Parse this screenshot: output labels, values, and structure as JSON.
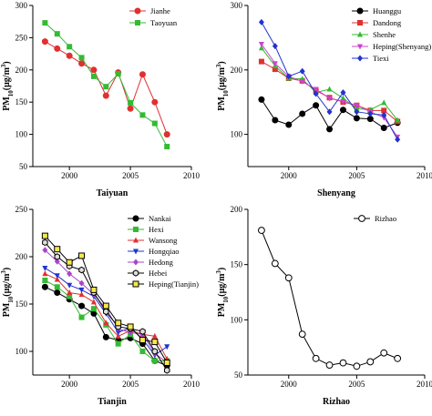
{
  "chart_data": [
    {
      "type": "line",
      "xlabel": "Taiyuan",
      "ylabel_main": "PM",
      "ylabel_sub": "10",
      "ylabel_unit": "(μg/m",
      "ylabel_sup": "3",
      "ylabel_close": ")",
      "xlim": [
        1997,
        2010
      ],
      "ylim": [
        50,
        300
      ],
      "xticks": [
        2000,
        2005,
        2010
      ],
      "yticks": [
        50,
        100,
        150,
        200,
        250,
        300
      ],
      "legend_position": "top-right",
      "series": [
        {
          "name": "Jianhe",
          "color": "#e03030",
          "marker": "circle",
          "x": [
            1998,
            1999,
            2000,
            2001,
            2002,
            2003,
            2004,
            2005,
            2006,
            2007,
            2008
          ],
          "y": [
            244,
            233,
            222,
            210,
            200,
            160,
            196,
            140,
            193,
            150,
            100
          ]
        },
        {
          "name": "Taoyuan",
          "color": "#33bb33",
          "marker": "square",
          "x": [
            1998,
            1999,
            2000,
            2001,
            2002,
            2003,
            2004,
            2005,
            2006,
            2007,
            2008
          ],
          "y": [
            273,
            256,
            236,
            219,
            190,
            174,
            194,
            149,
            130,
            117,
            81
          ]
        }
      ]
    },
    {
      "type": "line",
      "xlabel": "Shenyang",
      "ylabel_main": "PM",
      "ylabel_sub": "10",
      "ylabel_unit": "(μg/m",
      "ylabel_sup": "3",
      "ylabel_close": ")",
      "xlim": [
        1997,
        2010
      ],
      "ylim": [
        50,
        300
      ],
      "xticks": [
        2000,
        2005,
        2010
      ],
      "yticks": [
        100,
        200,
        300
      ],
      "legend_position": "top-right",
      "series": [
        {
          "name": "Huanggu",
          "color": "#000000",
          "marker": "circle",
          "x": [
            1998,
            1999,
            2000,
            2001,
            2002,
            2003,
            2004,
            2005,
            2006,
            2007,
            2008
          ],
          "y": [
            154,
            122,
            115,
            132,
            145,
            108,
            138,
            125,
            124,
            110,
            118
          ]
        },
        {
          "name": "Dandong",
          "color": "#e03030",
          "marker": "square",
          "x": [
            1998,
            1999,
            2000,
            2001,
            2002,
            2003,
            2004,
            2005,
            2006,
            2007,
            2008
          ],
          "y": [
            213,
            201,
            187,
            183,
            168,
            157,
            150,
            145,
            137,
            137,
            120
          ]
        },
        {
          "name": "Shenhe",
          "color": "#33bb33",
          "marker": "triangle",
          "x": [
            1998,
            1999,
            2000,
            2001,
            2002,
            2003,
            2004,
            2005,
            2006,
            2007,
            2008
          ],
          "y": [
            234,
            206,
            187,
            186,
            165,
            170,
            156,
            140,
            138,
            149,
            122
          ]
        },
        {
          "name": "Heping(Shenyang)",
          "color": "#cc44cc",
          "marker": "triangle-down",
          "x": [
            1998,
            1999,
            2000,
            2001,
            2002,
            2003,
            2004,
            2005,
            2006,
            2007,
            2008
          ],
          "y": [
            240,
            210,
            190,
            182,
            170,
            156,
            151,
            145,
            135,
            126,
            96
          ]
        },
        {
          "name": "Tiexi",
          "color": "#2233cc",
          "marker": "diamond",
          "x": [
            1998,
            1999,
            2000,
            2001,
            2002,
            2003,
            2004,
            2005,
            2006,
            2007,
            2008
          ],
          "y": [
            274,
            237,
            190,
            198,
            163,
            135,
            165,
            135,
            132,
            130,
            92
          ]
        }
      ]
    },
    {
      "type": "line",
      "xlabel": "Tianjin",
      "ylabel_main": "PM",
      "ylabel_sub": "10",
      "ylabel_unit": "(μg/m",
      "ylabel_sup": "3",
      "ylabel_close": ")",
      "xlim": [
        1997,
        2010
      ],
      "ylim": [
        75,
        250
      ],
      "xticks": [
        2000,
        2005,
        2010
      ],
      "yticks": [
        100,
        150,
        200,
        250
      ],
      "legend_position": "top-right",
      "series": [
        {
          "name": "Nankai",
          "color": "#000000",
          "marker": "circle",
          "x": [
            1998,
            1999,
            2000,
            2001,
            2002,
            2003,
            2004,
            2005,
            2006,
            2007,
            2008
          ],
          "y": [
            168,
            162,
            155,
            148,
            140,
            115,
            112,
            114,
            108,
            90,
            85
          ]
        },
        {
          "name": "Hexi",
          "color": "#33bb33",
          "marker": "square",
          "x": [
            1998,
            1999,
            2000,
            2001,
            2002,
            2003,
            2004,
            2005,
            2006,
            2007,
            2008
          ],
          "y": [
            175,
            168,
            158,
            136,
            145,
            128,
            108,
            118,
            100,
            90,
            90
          ]
        },
        {
          "name": "Wansong",
          "color": "#e03030",
          "marker": "triangle",
          "x": [
            1998,
            1999,
            2000,
            2001,
            2002,
            2003,
            2004,
            2005,
            2006,
            2007,
            2008
          ],
          "y": [
            182,
            176,
            162,
            160,
            152,
            130,
            116,
            122,
            118,
            116,
            92
          ]
        },
        {
          "name": "Hongqiao",
          "color": "#2233cc",
          "marker": "triangle-down",
          "x": [
            1998,
            1999,
            2000,
            2001,
            2002,
            2003,
            2004,
            2005,
            2006,
            2007,
            2008
          ],
          "y": [
            188,
            180,
            170,
            165,
            158,
            140,
            120,
            125,
            113,
            96,
            105
          ]
        },
        {
          "name": "Hedong",
          "color": "#aa44cc",
          "marker": "diamond",
          "x": [
            1998,
            1999,
            2000,
            2001,
            2002,
            2003,
            2004,
            2005,
            2006,
            2007,
            2008
          ],
          "y": [
            207,
            195,
            182,
            172,
            160,
            145,
            124,
            120,
            118,
            98,
            88
          ]
        },
        {
          "name": "Hebei",
          "color": "#000000",
          "marker": "hexagon",
          "x": [
            1998,
            1999,
            2000,
            2001,
            2002,
            2003,
            2004,
            2005,
            2006,
            2007,
            2008
          ],
          "y": [
            215,
            200,
            190,
            186,
            162,
            142,
            126,
            124,
            121,
            100,
            80
          ]
        },
        {
          "name": "Heping(Tianjin)",
          "color": "#000000",
          "marker": "square-yellow",
          "x": [
            1998,
            1999,
            2000,
            2001,
            2002,
            2003,
            2004,
            2005,
            2006,
            2007,
            2008
          ],
          "y": [
            222,
            208,
            194,
            201,
            165,
            148,
            130,
            126,
            112,
            110,
            88
          ]
        }
      ]
    },
    {
      "type": "line",
      "xlabel": "Rizhao",
      "ylabel_main": "PM",
      "ylabel_sub": "10",
      "ylabel_unit": "(μg/m",
      "ylabel_sup": "3",
      "ylabel_close": ")",
      "xlim": [
        1997,
        2010
      ],
      "ylim": [
        50,
        200
      ],
      "xticks": [
        2000,
        2005,
        2010
      ],
      "yticks": [
        50,
        100,
        150,
        200
      ],
      "legend_position": "top-right",
      "series": [
        {
          "name": "Rizhao",
          "color": "#000000",
          "marker": "open-circle",
          "x": [
            1998,
            1999,
            2000,
            2001,
            2002,
            2003,
            2004,
            2005,
            2006,
            2007,
            2008
          ],
          "y": [
            181,
            151,
            138,
            87,
            65,
            59,
            61,
            58,
            62,
            70,
            65
          ]
        }
      ]
    }
  ]
}
